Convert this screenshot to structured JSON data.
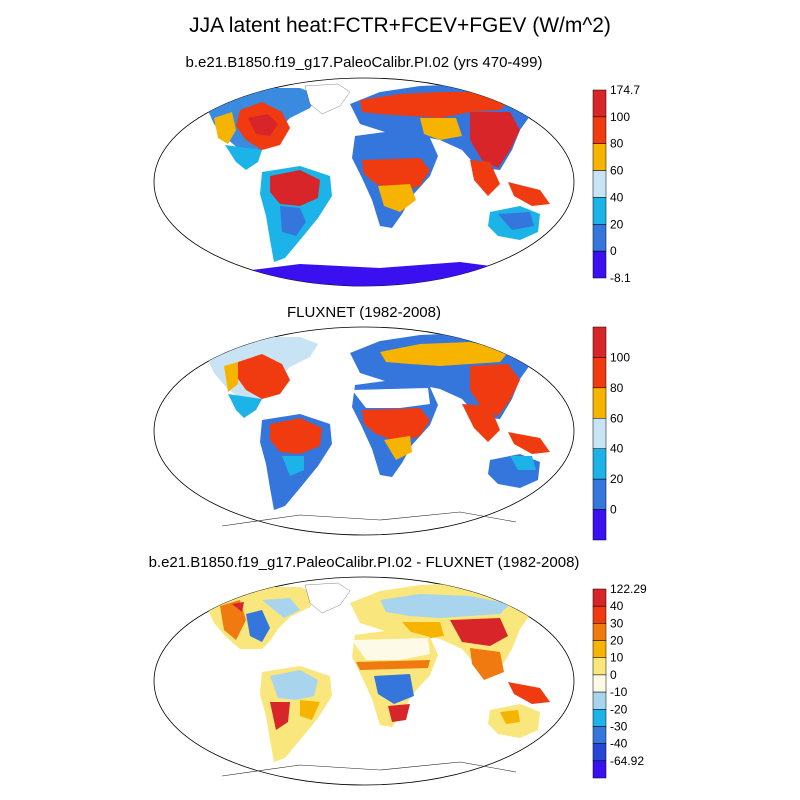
{
  "title": "JJA latent heat:FCTR+FCEV+FGEV (W/m^2)",
  "panels": [
    {
      "title": "b.e21.B1850.f19_g17.PaleoCalibr.PI.02 (yrs 470-499)",
      "colorbar": {
        "labels": [
          "174.7",
          "100",
          "80",
          "60",
          "40",
          "20",
          "0",
          "-8.1"
        ],
        "colors": [
          "#d7252a",
          "#f03a10",
          "#f6b400",
          "#c8e4f4",
          "#1cb4e8",
          "#3476dc",
          "#3a10f0"
        ]
      }
    },
    {
      "title": "FLUXNET (1982-2008)",
      "colorbar": {
        "labels": [
          "100",
          "80",
          "60",
          "40",
          "20",
          "0"
        ],
        "colors": [
          "#d7252a",
          "#f03a10",
          "#f6b400",
          "#c8e4f4",
          "#1cb4e8",
          "#3476dc",
          "#3a10f0"
        ]
      }
    },
    {
      "title": "b.e21.B1850.f19_g17.PaleoCalibr.PI.02 - FLUXNET (1982-2008)",
      "colorbar": {
        "labels": [
          "122.29",
          "40",
          "30",
          "20",
          "10",
          "0",
          "-10",
          "-20",
          "-30",
          "-40",
          "-64.92"
        ],
        "colors": [
          "#d7252a",
          "#f03a10",
          "#f07a10",
          "#f6b400",
          "#f9e67c",
          "#fdfbe8",
          "#a8d4ee",
          "#1cb4e8",
          "#3476dc",
          "#2646d8",
          "#3a10f0"
        ]
      }
    }
  ]
}
